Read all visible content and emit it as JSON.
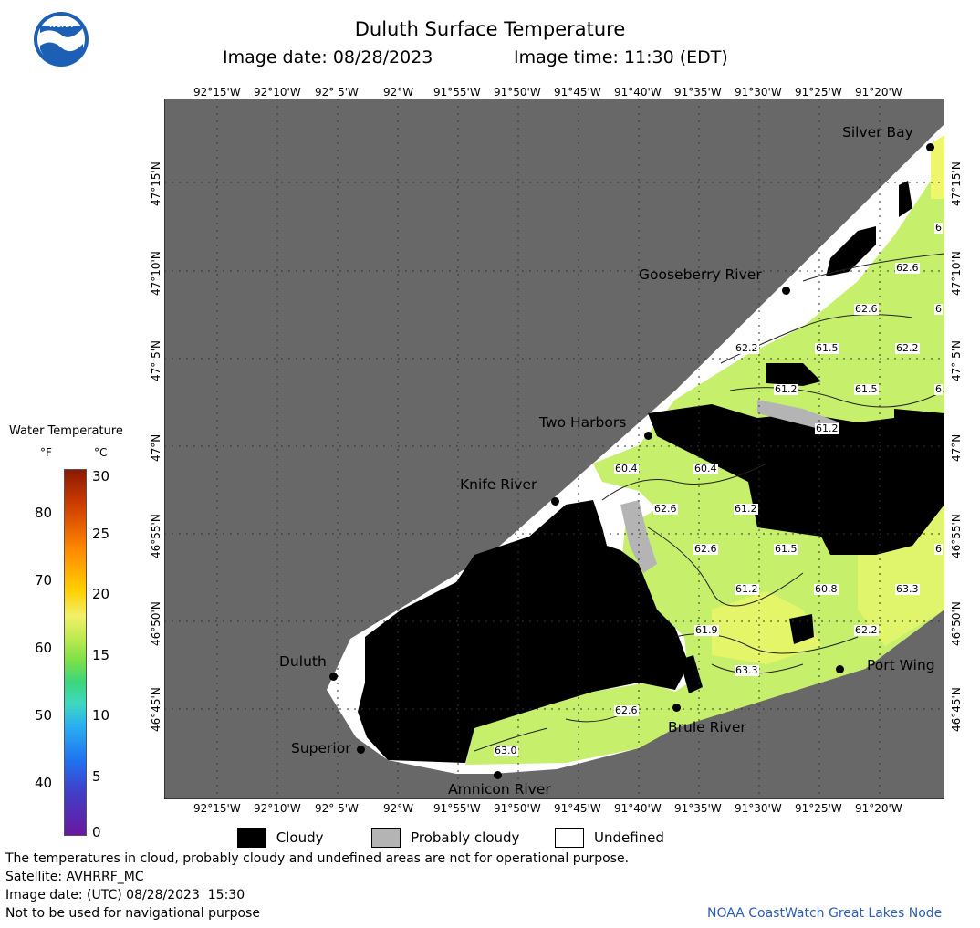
{
  "header": {
    "title": "Duluth Surface Temperature",
    "image_date_label": "Image date: 08/28/2023",
    "image_time_label": "Image time: 11:30 (EDT)"
  },
  "logo": {
    "text": "NOAA"
  },
  "map": {
    "lon_ticks": [
      "92°15'W",
      "92°10'W",
      "92° 5'W",
      "92°W",
      "91°55'W",
      "91°50'W",
      "91°45'W",
      "91°40'W",
      "91°35'W",
      "91°30'W",
      "91°25'W",
      "91°20'W"
    ],
    "lat_ticks": [
      "47°15'N",
      "47°10'N",
      "47° 5'N",
      "47°N",
      "46°55'N",
      "46°50'N",
      "46°45'N"
    ],
    "places": [
      {
        "name": "Silver Bay"
      },
      {
        "name": "Gooseberry River"
      },
      {
        "name": "Two Harbors"
      },
      {
        "name": "Knife River"
      },
      {
        "name": "Duluth"
      },
      {
        "name": "Superior"
      },
      {
        "name": "Amnicon River"
      },
      {
        "name": "Brule River"
      },
      {
        "name": "Port Wing"
      }
    ],
    "contour_labels": [
      "62.6",
      "62.6",
      "62.2",
      "61.5",
      "62.2",
      "61.2",
      "61.5",
      "61.2",
      "60.4",
      "60.4",
      "62.6",
      "61.2",
      "62.6",
      "61.5",
      "61.2",
      "60.8",
      "63.3",
      "61.9",
      "62.2",
      "63.3",
      "62.6",
      "63.0",
      "6",
      "6",
      "6",
      "6"
    ]
  },
  "legend": {
    "title": "Water Temperature",
    "unit_f": "°F",
    "unit_c": "°C",
    "f_ticks": [
      "80",
      "70",
      "60",
      "50",
      "40"
    ],
    "c_ticks": [
      "30",
      "25",
      "20",
      "15",
      "10",
      "5",
      "0"
    ],
    "items": [
      {
        "label": "Cloudy",
        "color": "#000000"
      },
      {
        "label": "Probably cloudy",
        "color": "#b4b4b4"
      },
      {
        "label": "Undefined",
        "color": "#ffffff"
      }
    ]
  },
  "footer": {
    "disclaimer": "The temperatures in cloud, probably cloudy and undefined areas are not for operational purpose.",
    "satellite": "Satellite: AVHRRF_MC",
    "utc_date": "Image date: (UTC) 08/28/2023  15:30",
    "nav_warning": "Not to be used for navigational purpose",
    "credit": "NOAA CoastWatch Great Lakes Node"
  },
  "colors": {
    "land": "#686868",
    "cloud": "#000000",
    "water": "#c8f070",
    "undefined": "#ffffff"
  }
}
